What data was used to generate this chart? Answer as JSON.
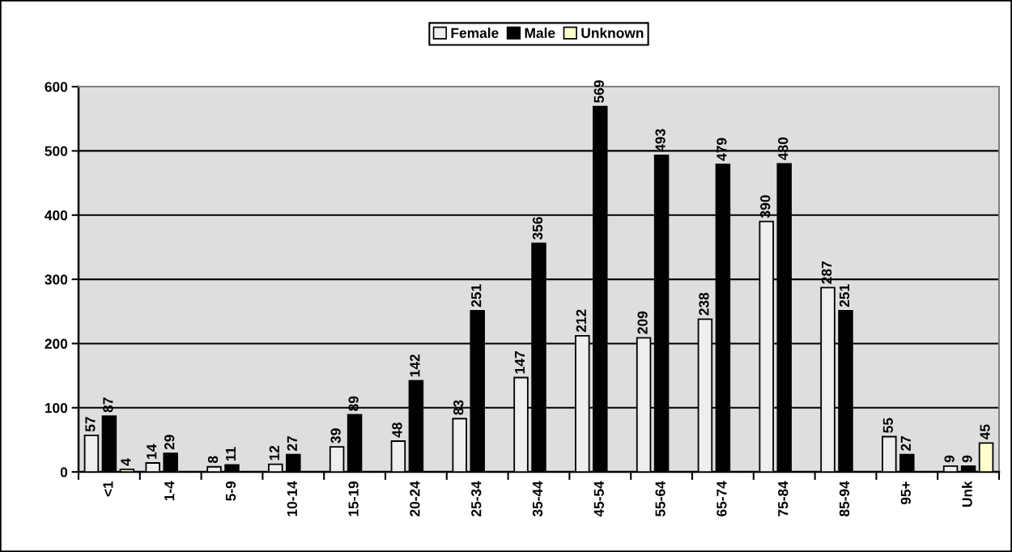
{
  "chart_data": {
    "type": "bar",
    "categories": [
      "<1",
      "1-4",
      "5-9",
      "10-14",
      "15-19",
      "20-24",
      "25-34",
      "35-44",
      "45-54",
      "55-64",
      "65-74",
      "75-84",
      "85-94",
      "95+",
      "Unk"
    ],
    "series": [
      {
        "name": "Female",
        "color": "#eeeeee",
        "values": [
          57,
          14,
          8,
          12,
          39,
          48,
          83,
          147,
          212,
          209,
          238,
          390,
          287,
          55,
          9
        ]
      },
      {
        "name": "Male",
        "color": "#000000",
        "values": [
          87,
          29,
          11,
          27,
          89,
          142,
          251,
          356,
          569,
          493,
          479,
          480,
          251,
          27,
          9
        ]
      },
      {
        "name": "Unknown",
        "color": "#ffffcc",
        "values": [
          4,
          null,
          null,
          null,
          null,
          null,
          null,
          null,
          null,
          null,
          null,
          null,
          null,
          null,
          45
        ]
      }
    ],
    "ylim": [
      0,
      600
    ],
    "yticks": [
      0,
      100,
      200,
      300,
      400,
      500,
      600
    ],
    "grid": "y",
    "legend": "top",
    "data_labels": true
  }
}
